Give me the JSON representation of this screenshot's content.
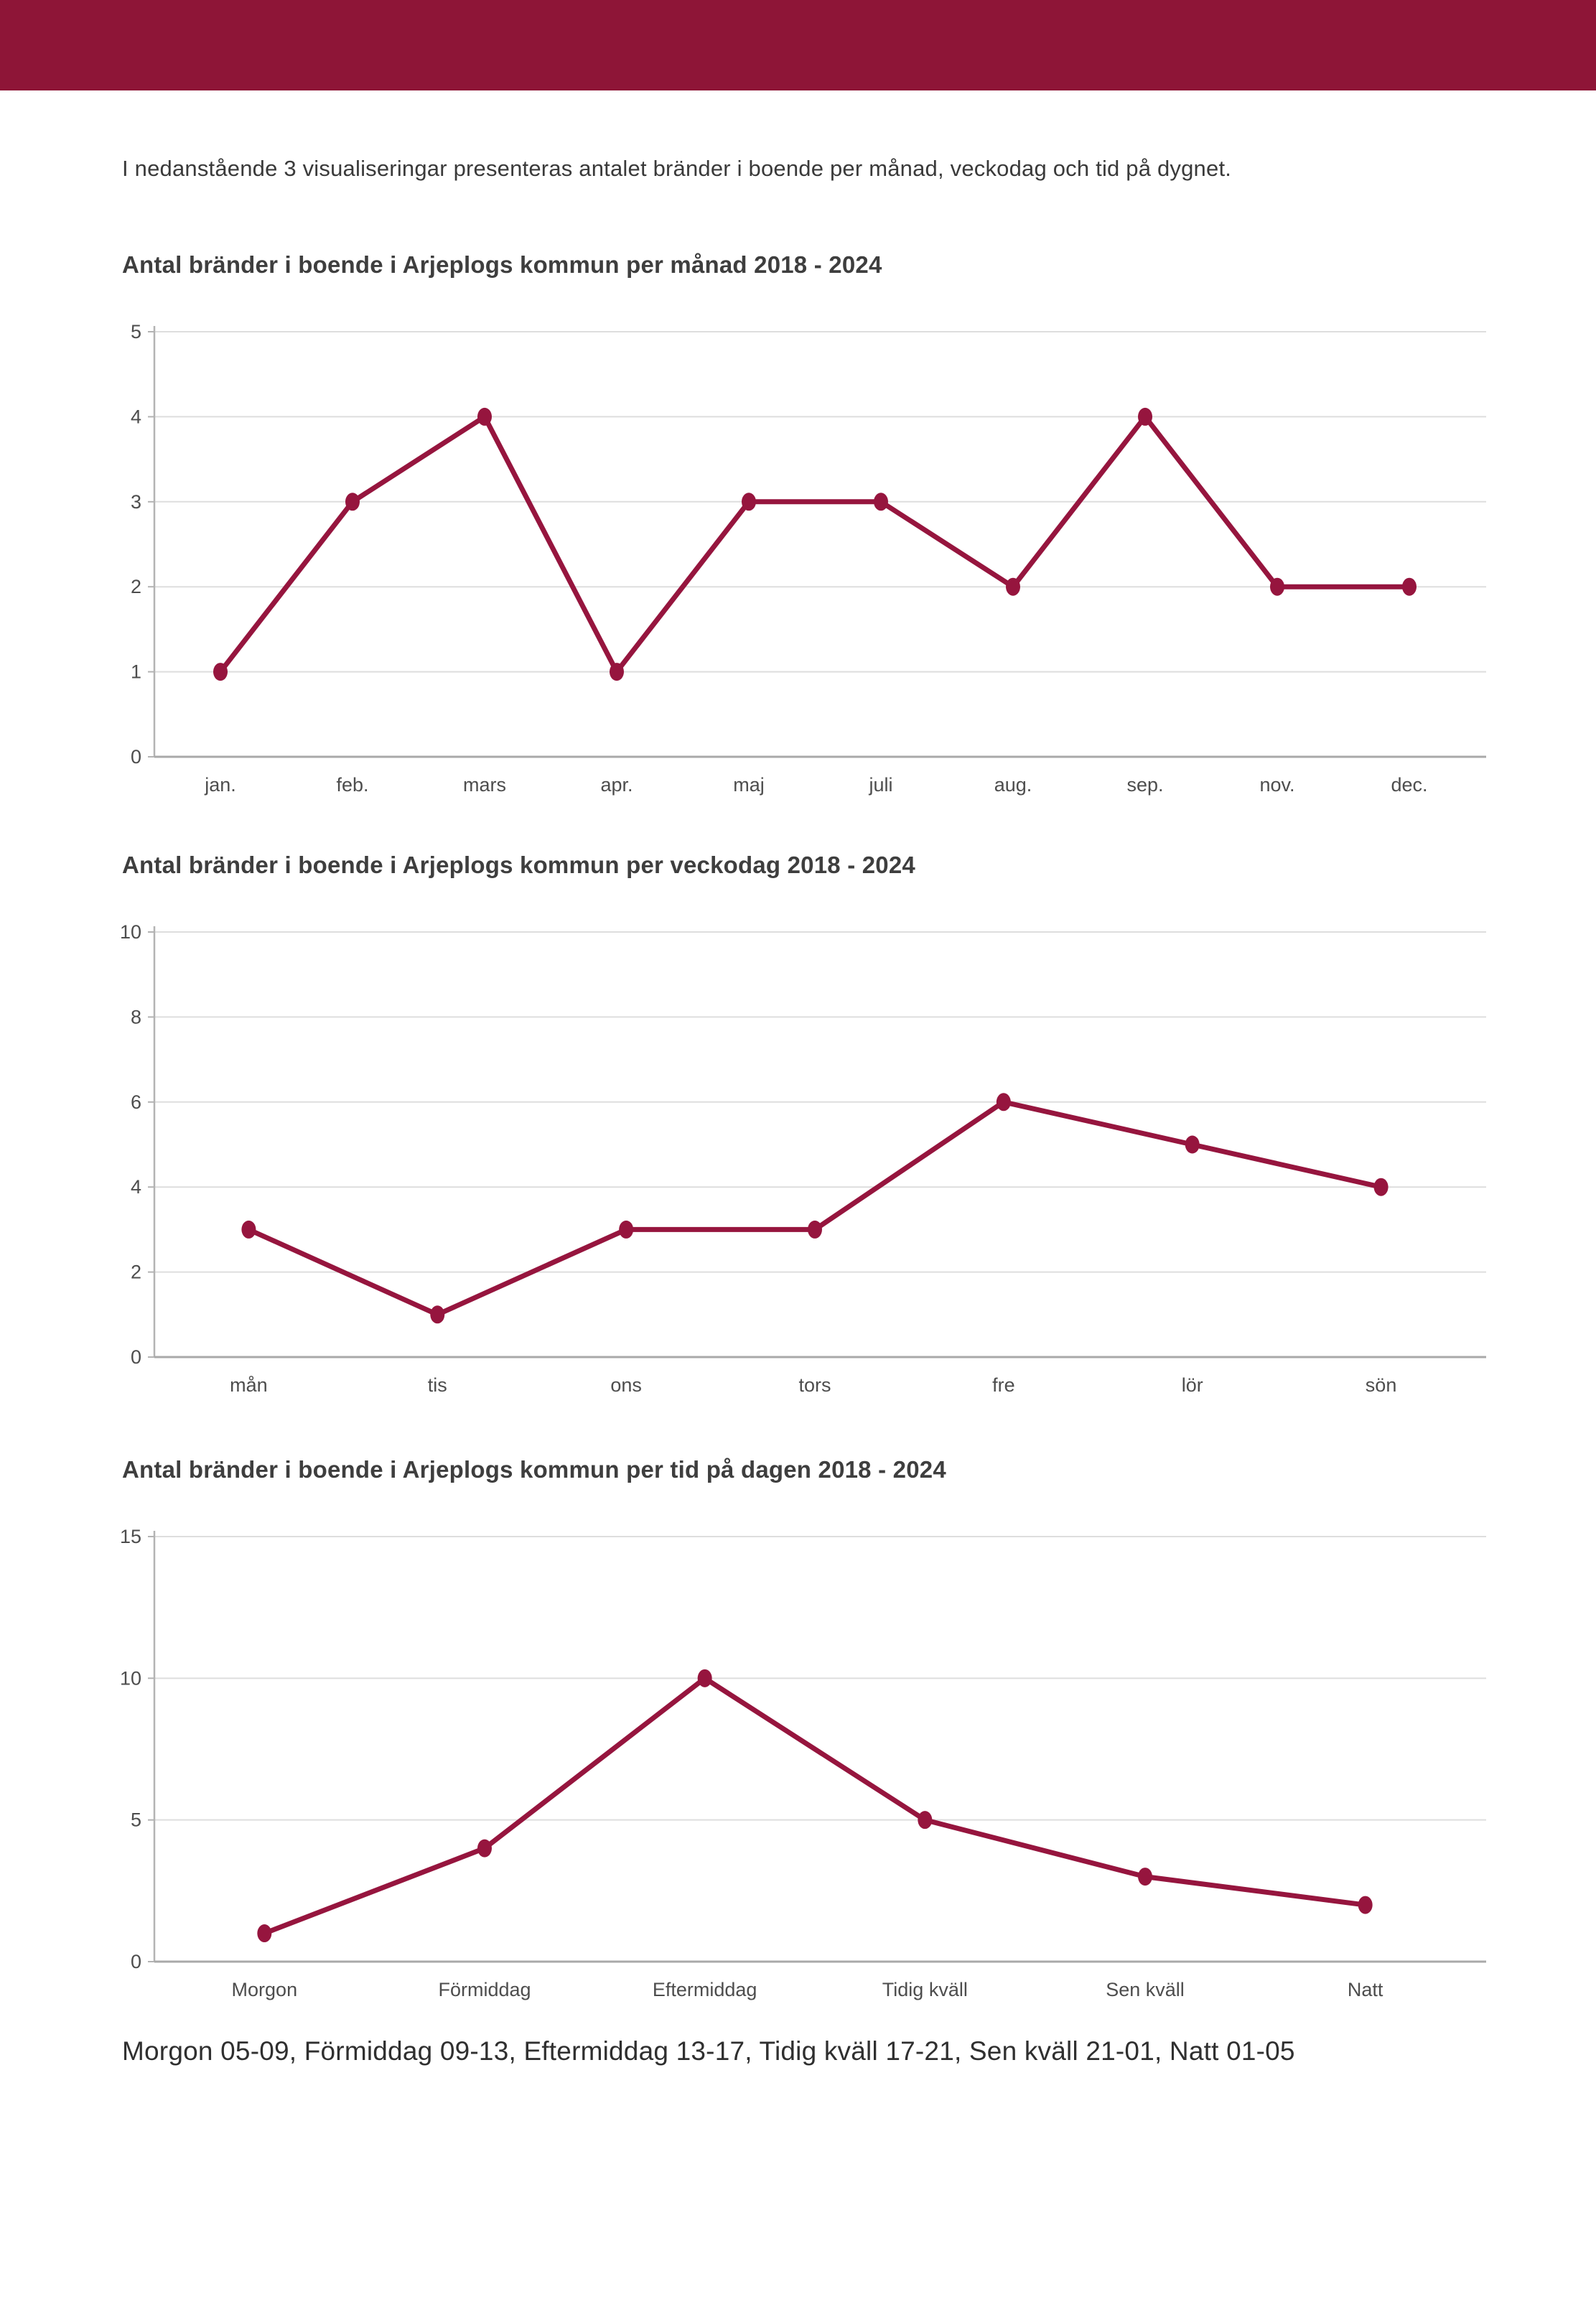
{
  "banner": {
    "color": "#8E1537"
  },
  "accent_color": "#96153E",
  "intro": "I nedanstående 3 visualiseringar presenteras antalet bränder i boende per månad, veckodag och tid på dygnet.",
  "footer": "Morgon 05-09, Förmiddag 09-13, Eftermiddag 13-17, Tidig kväll 17-21, Sen kväll 21-01, Natt 01-05",
  "chart_data": [
    {
      "type": "line",
      "title": "Antal bränder i boende i Arjeplogs kommun per månad 2018 - 2024",
      "categories": [
        "jan.",
        "feb.",
        "mars",
        "apr.",
        "maj",
        "juli",
        "aug.",
        "sep.",
        "nov.",
        "dec."
      ],
      "values": [
        1,
        3,
        4,
        1,
        3,
        3,
        2,
        4,
        2,
        2
      ],
      "xlabel": "",
      "ylabel": "",
      "ylim": [
        0,
        5
      ],
      "yticks": [
        0,
        1,
        2,
        3,
        4,
        5
      ],
      "grid": true,
      "legend": false,
      "line_color": "#96153E"
    },
    {
      "type": "line",
      "title": "Antal bränder i boende i Arjeplogs kommun per veckodag 2018 - 2024",
      "categories": [
        "mån",
        "tis",
        "ons",
        "tors",
        "fre",
        "lör",
        "sön"
      ],
      "values": [
        3,
        1,
        3,
        3,
        6,
        5,
        4
      ],
      "xlabel": "",
      "ylabel": "",
      "ylim": [
        0,
        10
      ],
      "yticks": [
        0,
        2,
        4,
        6,
        8,
        10
      ],
      "grid": true,
      "legend": false,
      "line_color": "#96153E"
    },
    {
      "type": "line",
      "title": "Antal bränder i boende i Arjeplogs kommun per tid på dagen 2018 - 2024",
      "categories": [
        "Morgon",
        "Förmiddag",
        "Eftermiddag",
        "Tidig kväll",
        "Sen kväll",
        "Natt"
      ],
      "values": [
        1,
        4,
        10,
        5,
        3,
        2
      ],
      "xlabel": "",
      "ylabel": "",
      "ylim": [
        0,
        15
      ],
      "yticks": [
        0,
        5,
        10,
        15
      ],
      "grid": true,
      "legend": false,
      "line_color": "#96153E"
    }
  ]
}
